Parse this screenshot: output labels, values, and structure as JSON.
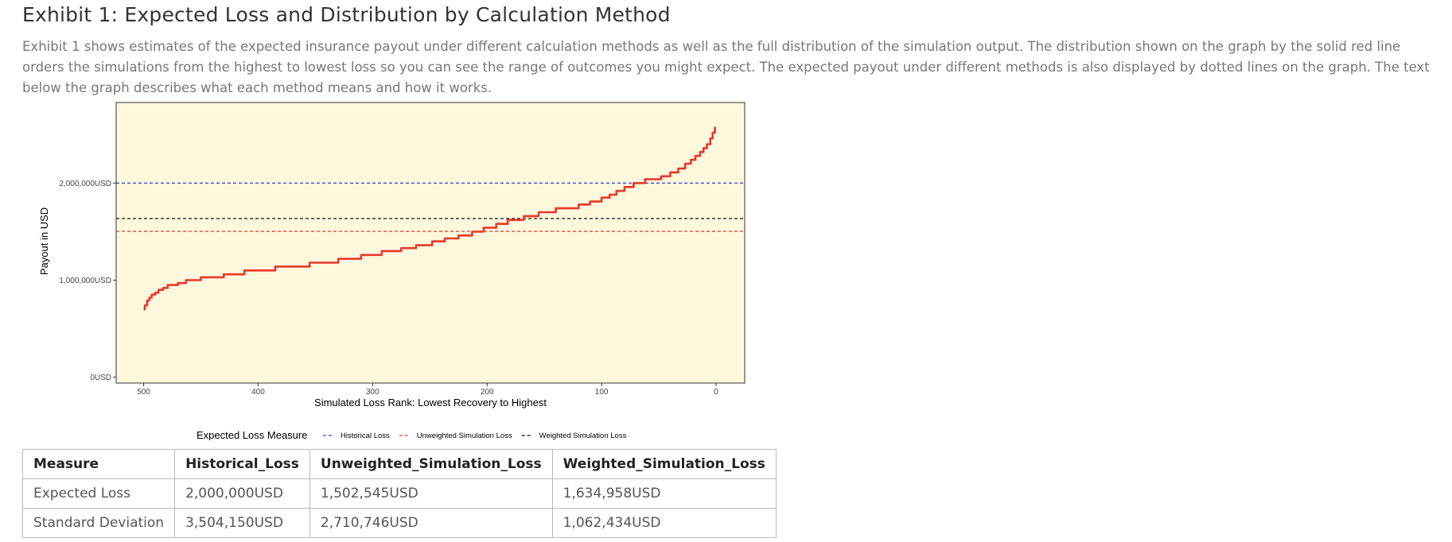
{
  "header": {
    "title": "Exhibit 1: Expected Loss and Distribution by Calculation Method",
    "description": "Exhibit 1 shows estimates of the expected insurance payout under different calculation methods as well as the full distribution of the simulation output. The distribution shown on the graph by the solid red line orders the simulations from the highest to lowest loss so you can see the range of outcomes you might expect. The expected payout under different methods is also displayed by dotted lines on the graph. The text below the graph describes what each method means and how it works."
  },
  "chart_data": {
    "type": "line",
    "xlabel": "Simulated Loss Rank: Lowest Recovery to Highest",
    "ylabel": "Payout in USD",
    "xlim": [
      524,
      -25
    ],
    "ylim": [
      -60000,
      2830000
    ],
    "x_reversed": true,
    "x_ticks": [
      500,
      400,
      300,
      200,
      100,
      0
    ],
    "x_tick_labels": [
      "500",
      "400",
      "300",
      "200",
      "100",
      "0"
    ],
    "y_ticks": [
      0,
      1000000,
      2000000
    ],
    "y_tick_labels": [
      "0USD",
      "1,000,000USD",
      "2,000,000USD"
    ],
    "background": "#fff8dc",
    "grid": false,
    "legend_position": "bottom",
    "legend_title": "Expected Loss Measure",
    "series": [
      {
        "kind": "distribution",
        "color": "#e8372c",
        "style": "solid",
        "x": [
          500,
          499,
          497,
          495,
          493,
          490,
          487,
          483,
          479,
          470,
          463,
          450,
          430,
          412,
          385,
          355,
          330,
          310,
          292,
          275,
          262,
          248,
          237,
          225,
          213,
          203,
          192,
          182,
          168,
          155,
          140,
          120,
          110,
          100,
          93,
          87,
          80,
          72,
          62,
          48,
          40,
          33,
          27,
          22,
          18,
          14,
          11,
          8,
          5,
          3,
          1
        ],
        "y": [
          700000,
          740000,
          790000,
          820000,
          850000,
          870000,
          900000,
          920000,
          950000,
          970000,
          1000000,
          1030000,
          1060000,
          1100000,
          1140000,
          1180000,
          1220000,
          1260000,
          1300000,
          1330000,
          1360000,
          1400000,
          1430000,
          1460000,
          1500000,
          1540000,
          1580000,
          1620000,
          1660000,
          1700000,
          1740000,
          1780000,
          1810000,
          1850000,
          1880000,
          1920000,
          1960000,
          2000000,
          2040000,
          2070000,
          2110000,
          2150000,
          2200000,
          2240000,
          2280000,
          2320000,
          2360000,
          2400000,
          2460000,
          2520000,
          2580000
        ]
      },
      {
        "name": "Historical Loss",
        "kind": "hline",
        "y": 2000000,
        "color": "#2b3de0",
        "style": "dashed"
      },
      {
        "name": "Unweighted Simulation Loss",
        "kind": "hline",
        "y": 1502545,
        "color": "#e8372c",
        "style": "dashed"
      },
      {
        "name": "Weighted Simulation Loss",
        "kind": "hline",
        "y": 1634958,
        "color": "#111111",
        "style": "dashed"
      }
    ]
  },
  "legend_items": [
    {
      "label": "Historical Loss",
      "color": "#2b3de0"
    },
    {
      "label": "Unweighted Simulation Loss",
      "color": "#e8372c"
    },
    {
      "label": "Weighted Simulation Loss",
      "color": "#111111"
    }
  ],
  "table": {
    "headers": [
      "Measure",
      "Historical_Loss",
      "Unweighted_Simulation_Loss",
      "Weighted_Simulation_Loss"
    ],
    "rows": [
      [
        "Expected Loss",
        "2,000,000USD",
        "1,502,545USD",
        "1,634,958USD"
      ],
      [
        "Standard Deviation",
        "3,504,150USD",
        "2,710,746USD",
        "1,062,434USD"
      ]
    ]
  }
}
